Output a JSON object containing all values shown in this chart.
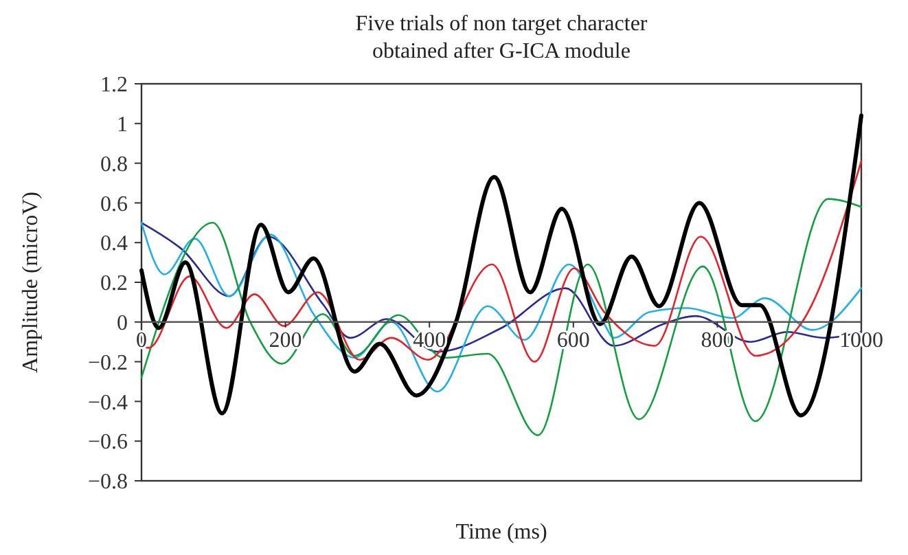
{
  "chart_data": {
    "type": "line",
    "title": "Five trials of non target character\nobtained after G-ICA module",
    "xlabel": "Time (ms)",
    "ylabel": "Amplitude (microV)",
    "xlim": [
      0,
      1000
    ],
    "xticks": [
      0,
      200,
      400,
      600,
      800,
      1000
    ],
    "ylim": [
      -0.8,
      1.2
    ],
    "yticks": [
      {
        "value": -0.8,
        "label": "−0.8"
      },
      {
        "value": -0.6,
        "label": "−0.6"
      },
      {
        "value": -0.4,
        "label": "−0.4"
      },
      {
        "value": -0.2,
        "label": "−0.2"
      },
      0,
      0.2,
      0.4,
      0.6,
      0.8,
      1,
      1.2
    ],
    "grid": false,
    "marker": "none",
    "line_style": "solid",
    "series": [
      {
        "color": "#2a2a90",
        "x": [
          0,
          55,
          122,
          176,
          252,
          290,
          341,
          411,
          500,
          589,
          656,
          725,
          770,
          846,
          897,
          948,
          1000
        ],
        "values": [
          0.5,
          0.37,
          0.13,
          0.43,
          0.09,
          -0.08,
          0.015,
          -0.15,
          -0.03,
          0.17,
          -0.12,
          -0.01,
          0.03,
          -0.1,
          -0.05,
          -0.08,
          -0.05
        ]
      },
      {
        "color": "#20b0e8",
        "x": [
          0,
          32,
          74,
          122,
          179,
          239,
          296,
          347,
          411,
          481,
          532,
          594,
          643,
          656,
          706,
          758,
          821,
          866,
          932,
          1000
        ],
        "values": [
          0.5,
          0.24,
          0.42,
          0.13,
          0.44,
          0.04,
          -0.18,
          0.0,
          -0.35,
          0.08,
          -0.09,
          0.29,
          -0.01,
          -0.08,
          0.05,
          0.07,
          0.02,
          0.12,
          -0.04,
          0.17
        ]
      },
      {
        "color": "#10a040",
        "x": [
          0,
          99,
          151,
          195,
          252,
          296,
          357,
          420,
          481,
          551,
          620,
          691,
          780,
          853,
          954,
          1000
        ],
        "values": [
          -0.28,
          0.5,
          0.0,
          -0.21,
          0.04,
          -0.17,
          0.035,
          -0.18,
          -0.16,
          -0.57,
          0.29,
          -0.49,
          0.28,
          -0.5,
          0.62,
          0.58
        ]
      },
      {
        "color": "#e8202a",
        "x": [
          0,
          10,
          67,
          118,
          157,
          198,
          245,
          303,
          347,
          398,
          487,
          546,
          601,
          643,
          713,
          777,
          853,
          916,
          1000
        ],
        "values": [
          -0.12,
          -0.13,
          0.23,
          -0.03,
          0.14,
          -0.02,
          0.15,
          -0.19,
          -0.08,
          -0.19,
          0.29,
          -0.2,
          0.27,
          0.05,
          -0.12,
          0.43,
          -0.17,
          -0.01,
          0.81
        ]
      },
      {
        "color": "#000000",
        "x": [
          0,
          24,
          61,
          112,
          166,
          204,
          239,
          296,
          331,
          382,
          437,
          490,
          540,
          584,
          637,
          681,
          719,
          775,
          834,
          859,
          916,
          1000
        ],
        "values": [
          0.26,
          -0.03,
          0.3,
          -0.46,
          0.49,
          0.15,
          0.32,
          -0.25,
          -0.11,
          -0.37,
          0.0,
          0.73,
          0.15,
          0.57,
          -0.01,
          0.33,
          0.08,
          0.6,
          0.085,
          0.085,
          -0.47,
          1.04
        ]
      }
    ]
  }
}
